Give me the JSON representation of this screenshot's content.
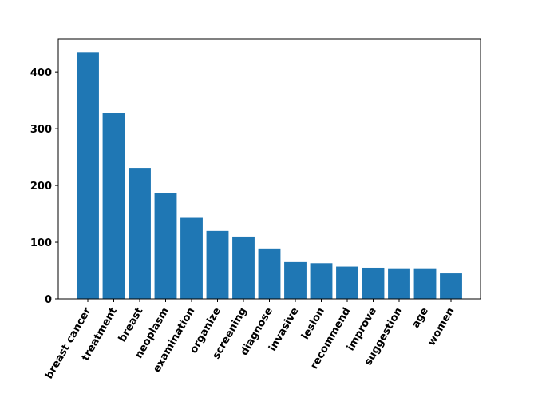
{
  "chart_data": {
    "type": "bar",
    "categories": [
      "breast cancer",
      "treatment",
      "breast",
      "neoplasm",
      "examination",
      "organize",
      "screening",
      "diagnose",
      "invasive",
      "lesion",
      "recommend",
      "improve",
      "suggestion",
      "age",
      "women"
    ],
    "values": [
      435,
      327,
      231,
      187,
      143,
      120,
      110,
      89,
      65,
      63,
      57,
      55,
      54,
      54,
      45
    ],
    "title": "",
    "xlabel": "",
    "ylabel": "",
    "ylim": [
      0,
      458
    ],
    "yticks": [
      0,
      100,
      200,
      300,
      400
    ],
    "bar_color": "#1f77b4",
    "grid": false,
    "legend": "none"
  }
}
